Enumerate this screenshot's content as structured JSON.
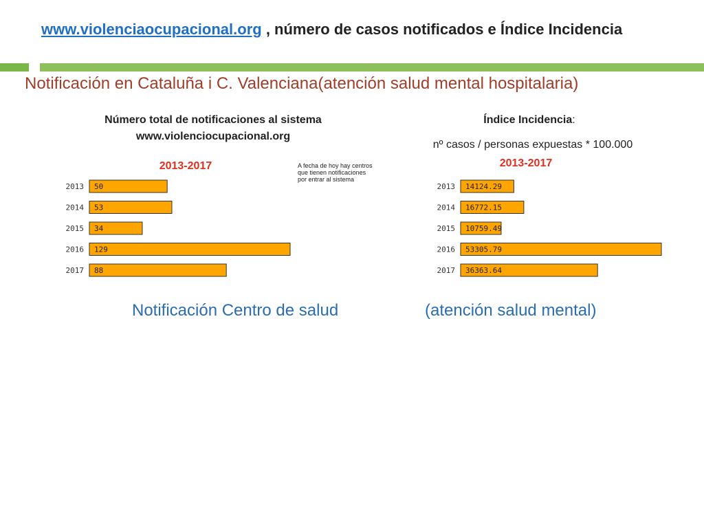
{
  "header": {
    "link_text": "www.violenciaocupacional.org",
    "title_rest": " , número de casos notificados e Índice Incidencia"
  },
  "subtitle": "Notificación en Cataluña i C. Valenciana(atención salud mental hospitalaria)",
  "left_panel": {
    "heading_line1": "Número total de notificaciones al sistema",
    "heading_line2": "www.violenciocupacional.org",
    "period": "2013-2017",
    "note_line1": "A fecha de hoy hay centros",
    "note_line2": "que tienen notificaciones",
    "note_line3": "por entrar al sistema"
  },
  "right_panel": {
    "heading_label": "Índice Incidencia",
    "heading_colon": ":",
    "formula": "nº casos / personas expuestas * 100.000",
    "period": "2013-2017"
  },
  "bottom": {
    "left_text": "Notificación Centro de salud",
    "right_text": "(atención salud mental)"
  },
  "colors": {
    "bar_fill": "#ffa500",
    "bar_stroke": "#333333"
  },
  "chart_data": [
    {
      "type": "bar",
      "orientation": "horizontal",
      "categories": [
        "2013",
        "2014",
        "2015",
        "2016",
        "2017"
      ],
      "values": [
        50,
        53,
        34,
        129,
        88
      ],
      "value_labels": [
        "50",
        "53",
        "34",
        "129",
        "88"
      ],
      "title": "2013-2017",
      "xlim": [
        0,
        129
      ]
    },
    {
      "type": "bar",
      "orientation": "horizontal",
      "categories": [
        "2013",
        "2014",
        "2015",
        "2016",
        "2017"
      ],
      "values": [
        14124.29,
        16772.15,
        10759.49,
        53305.79,
        36363.64
      ],
      "value_labels": [
        "14124.29",
        "16772.15",
        "10759.49",
        "53305.79",
        "36363.64"
      ],
      "title": "2013-2017",
      "xlim": [
        0,
        53305.79
      ]
    }
  ]
}
